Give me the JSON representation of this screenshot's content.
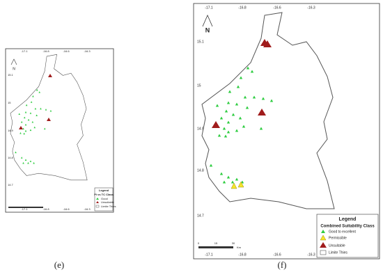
{
  "panels": [
    {
      "label": "(e)",
      "lon_labels": [
        "-17.1",
        "-16.8",
        "-16.6",
        "-16.3"
      ],
      "lat_labels": [
        "15.1",
        "15",
        "14.9",
        "14.8",
        "14.7"
      ],
      "north": "N",
      "legend": {
        "title": "Legend",
        "subtitle": "Pi vs TC Class",
        "items": [
          "Good",
          "Unsuitable",
          "Limite Thies"
        ]
      }
    },
    {
      "label": "(f)",
      "lon_labels": [
        "-17.1",
        "-16.8",
        "-16.6",
        "-16.3"
      ],
      "lat_labels": [
        "15.1",
        "15",
        "14.9",
        "14.8",
        "14.7"
      ],
      "north": "N",
      "scale": [
        "0",
        "15",
        "30",
        "Km"
      ],
      "legend": {
        "title": "Legend",
        "subtitle": "Combined Suitability Class",
        "items": [
          "Good to excellent",
          "Permissible",
          "Unsuitable",
          "Limite Thies"
        ]
      }
    }
  ]
}
